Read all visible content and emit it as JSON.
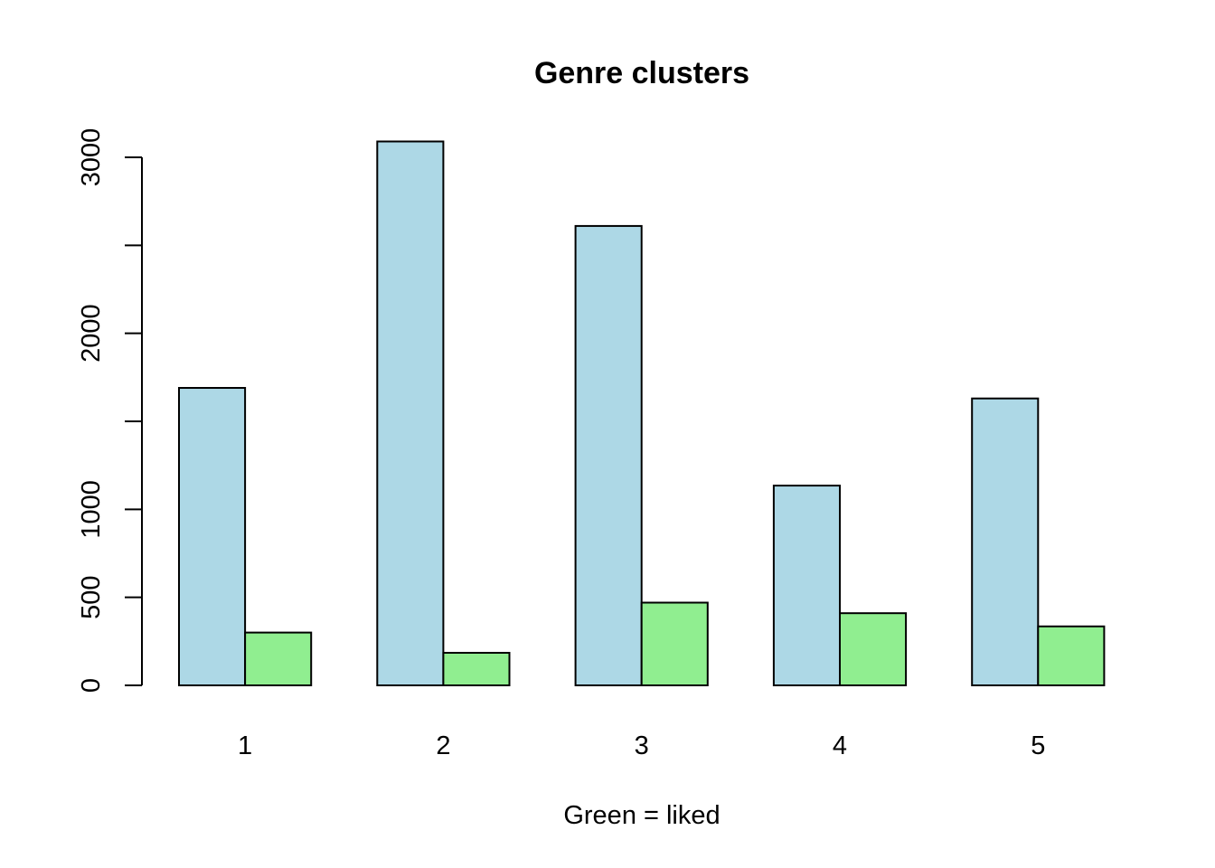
{
  "chart_data": {
    "type": "bar",
    "title": "Genre clusters",
    "xlabel": "Green = liked",
    "ylabel": "",
    "categories": [
      "1",
      "2",
      "3",
      "4",
      "5"
    ],
    "series": [
      {
        "values": [
          1690,
          3090,
          2610,
          1135,
          1630
        ]
      },
      {
        "values": [
          300,
          185,
          470,
          410,
          335
        ]
      }
    ],
    "colors": [
      "#ADD8E6",
      "#90EE90"
    ],
    "bar_outline": "#000000",
    "ylim": [
      0,
      3000
    ],
    "y_ticks": [
      0,
      500,
      1000,
      1500,
      2000,
      2500,
      3000
    ],
    "y_tick_labels": [
      "0",
      "500",
      "1000",
      "",
      "2000",
      "",
      "3000"
    ],
    "grid": false,
    "legend": "none"
  }
}
